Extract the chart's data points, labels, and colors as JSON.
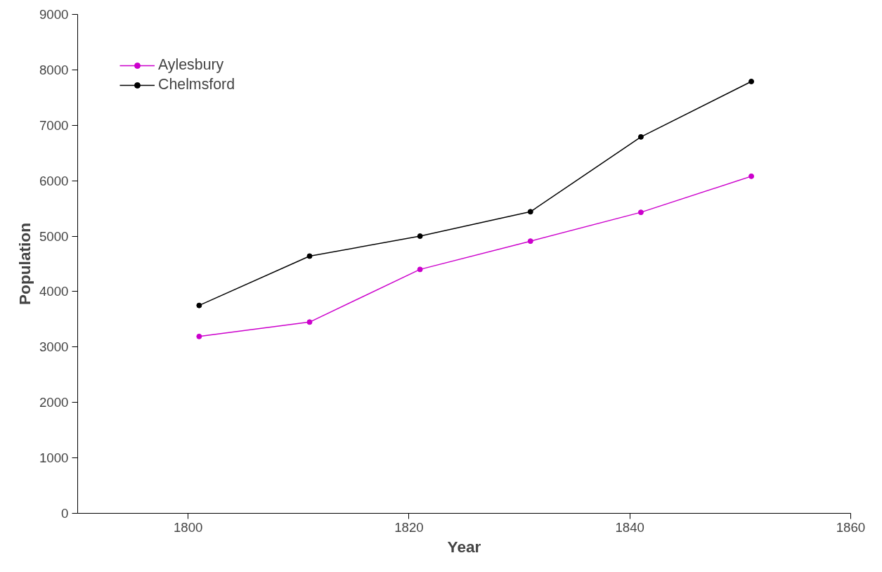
{
  "chart_data": {
    "type": "line",
    "xlabel": "Year",
    "ylabel": "Population",
    "x": [
      1801,
      1811,
      1821,
      1831,
      1841,
      1851
    ],
    "series": [
      {
        "name": "Aylesbury",
        "color": "#cc00cc",
        "values": [
          3190,
          3450,
          4400,
          4910,
          5430,
          6080
        ]
      },
      {
        "name": "Chelmsford",
        "color": "#000000",
        "values": [
          3750,
          4640,
          5000,
          5440,
          6790,
          7790
        ]
      }
    ],
    "xlim": [
      1790,
      1860
    ],
    "xticks": [
      1800,
      1820,
      1840,
      1860
    ],
    "ylim": [
      0,
      9000
    ],
    "yticks": [
      0,
      1000,
      2000,
      3000,
      4000,
      5000,
      6000,
      7000,
      8000,
      9000
    ],
    "grid": false,
    "legend": "top left",
    "marker": "circle",
    "line_style": "solid"
  }
}
